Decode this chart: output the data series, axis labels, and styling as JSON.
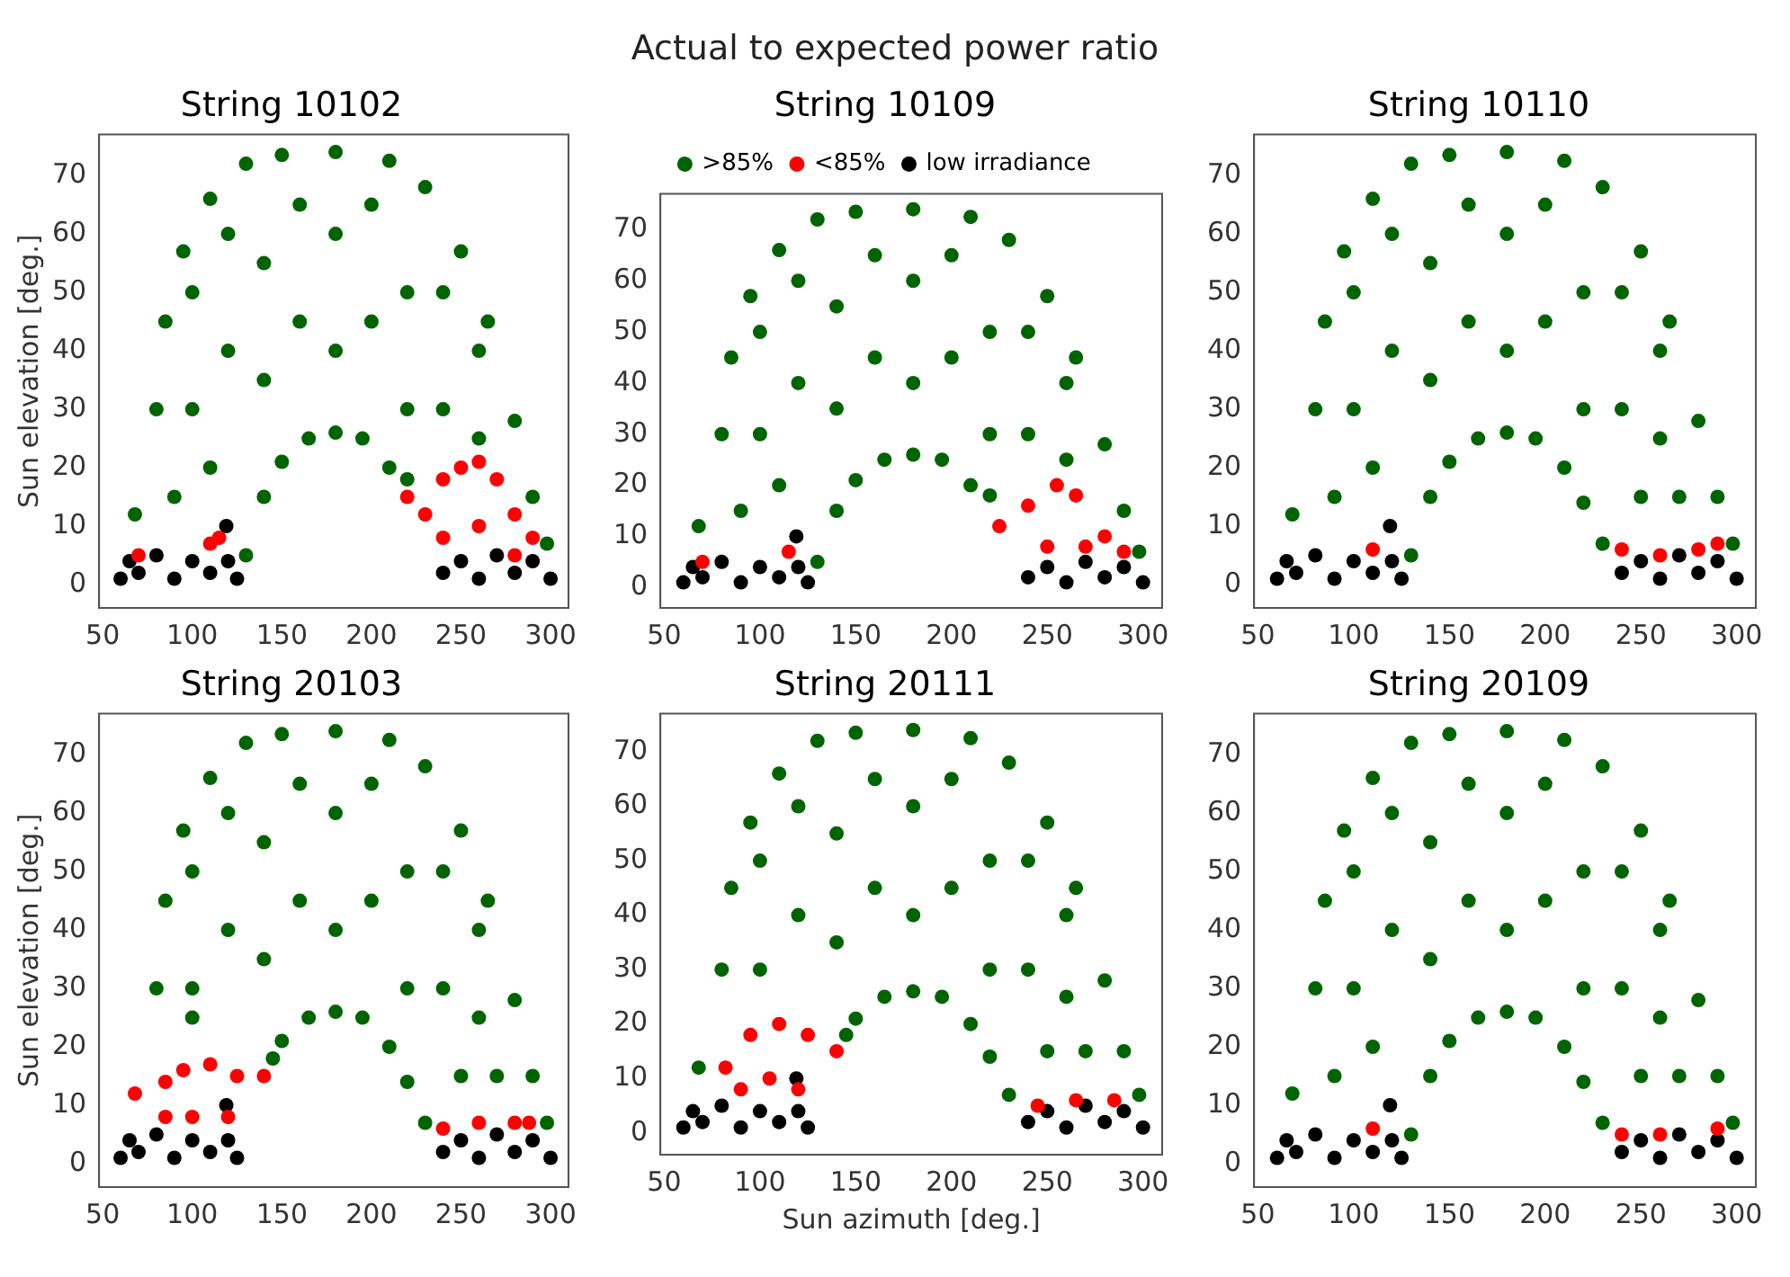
{
  "chart_data": [
    {
      "type": "scatter",
      "title": "String 10102",
      "ylabel": "Sun elevation [deg.]",
      "annotations": [
        "Actual to expected power ratio"
      ],
      "xlim": [
        48,
        310
      ],
      "ylim": [
        -4,
        77
      ],
      "xticks": [
        50,
        100,
        150,
        200,
        250,
        300
      ],
      "yticks": [
        0,
        10,
        20,
        30,
        40,
        50,
        60,
        70
      ],
      "grid": false,
      "legend": false,
      "marker": "circle",
      "series": [
        {
          "color": "#006400",
          "x": [
            80,
            85,
            95,
            110,
            130,
            150,
            180,
            210,
            230,
            250,
            265,
            280,
            290,
            298,
            130,
            140,
            150,
            165,
            180,
            195,
            210,
            220,
            68,
            90,
            110,
            100,
            100,
            120,
            120,
            140,
            140,
            160,
            160,
            180,
            180,
            200,
            200,
            220,
            220,
            240,
            240,
            260,
            260
          ],
          "values": [
            30,
            45,
            57,
            66,
            72,
            73.5,
            74,
            72.5,
            68,
            57,
            45,
            28,
            15,
            7,
            5,
            15,
            21,
            25,
            26,
            25,
            20,
            18,
            12,
            15,
            20,
            30,
            50,
            40,
            60,
            35,
            55,
            45,
            65,
            40,
            60,
            45,
            65,
            30,
            50,
            30,
            50,
            25,
            40
          ]
        },
        {
          "color": "#ff0000",
          "x": [
            220,
            230,
            240,
            250,
            260,
            270,
            280,
            290,
            240,
            260,
            280,
            70,
            110,
            115
          ],
          "values": [
            15,
            12,
            18,
            20,
            21,
            18,
            12,
            8,
            8,
            10,
            5,
            5,
            7,
            8
          ]
        },
        {
          "color": "#000000",
          "x": [
            60,
            65,
            70,
            80,
            90,
            100,
            110,
            120,
            125,
            119,
            240,
            250,
            260,
            270,
            280,
            290,
            300
          ],
          "values": [
            1,
            4,
            2,
            5,
            1,
            4,
            2,
            4,
            1,
            10,
            2,
            4,
            1,
            5,
            2,
            4,
            1
          ]
        }
      ]
    },
    {
      "type": "scatter",
      "title": "String 10109",
      "xlim": [
        48,
        310
      ],
      "ylim": [
        -4,
        77
      ],
      "xticks": [
        50,
        100,
        150,
        200,
        250,
        300
      ],
      "yticks": [
        0,
        10,
        20,
        30,
        40,
        50,
        60,
        70
      ],
      "grid": false,
      "legend": "top",
      "marker": "circle",
      "series": [
        {
          "name": ">85%",
          "color": "#006400",
          "x": [
            80,
            85,
            95,
            110,
            130,
            150,
            180,
            210,
            230,
            250,
            265,
            280,
            290,
            298,
            130,
            140,
            150,
            165,
            180,
            195,
            210,
            220,
            68,
            90,
            110,
            100,
            100,
            120,
            120,
            140,
            140,
            160,
            160,
            180,
            180,
            200,
            200,
            220,
            220,
            240,
            240,
            260,
            260
          ],
          "values": [
            30,
            45,
            57,
            66,
            72,
            73.5,
            74,
            72.5,
            68,
            57,
            45,
            28,
            15,
            7,
            5,
            15,
            21,
            25,
            26,
            25,
            20,
            18,
            12,
            15,
            20,
            30,
            50,
            40,
            60,
            35,
            55,
            45,
            65,
            40,
            60,
            45,
            65,
            30,
            50,
            30,
            50,
            25,
            40
          ]
        },
        {
          "name": "<85%",
          "color": "#ff0000",
          "x": [
            225,
            240,
            255,
            265,
            280,
            290,
            250,
            270,
            70,
            115
          ],
          "values": [
            12,
            16,
            20,
            18,
            10,
            7,
            8,
            8,
            5,
            7
          ]
        },
        {
          "name": "low irradiance",
          "color": "#000000",
          "x": [
            60,
            65,
            70,
            80,
            90,
            100,
            110,
            120,
            125,
            119,
            240,
            250,
            260,
            270,
            280,
            290,
            300
          ],
          "values": [
            1,
            4,
            2,
            5,
            1,
            4,
            2,
            4,
            1,
            10,
            2,
            4,
            1,
            5,
            2,
            4,
            1
          ]
        }
      ]
    },
    {
      "type": "scatter",
      "title": "String 10110",
      "xlim": [
        48,
        310
      ],
      "ylim": [
        -4,
        77
      ],
      "xticks": [
        50,
        100,
        150,
        200,
        250,
        300
      ],
      "yticks": [
        0,
        10,
        20,
        30,
        40,
        50,
        60,
        70
      ],
      "grid": false,
      "legend": false,
      "marker": "circle",
      "series": [
        {
          "color": "#006400",
          "x": [
            80,
            85,
            95,
            110,
            130,
            150,
            180,
            210,
            230,
            250,
            265,
            280,
            290,
            298,
            130,
            140,
            150,
            165,
            180,
            195,
            210,
            220,
            230,
            68,
            90,
            110,
            100,
            100,
            120,
            120,
            140,
            140,
            160,
            160,
            180,
            180,
            200,
            200,
            220,
            220,
            240,
            240,
            260,
            260,
            250,
            270
          ],
          "values": [
            30,
            45,
            57,
            66,
            72,
            73.5,
            74,
            72.5,
            68,
            57,
            45,
            28,
            15,
            7,
            5,
            15,
            21,
            25,
            26,
            25,
            20,
            14,
            7,
            12,
            15,
            20,
            30,
            50,
            40,
            60,
            35,
            55,
            45,
            65,
            40,
            60,
            45,
            65,
            30,
            50,
            30,
            50,
            25,
            40,
            15,
            15
          ]
        },
        {
          "color": "#ff0000",
          "x": [
            240,
            260,
            280,
            290,
            110
          ],
          "values": [
            6,
            5,
            6,
            7,
            6
          ]
        },
        {
          "color": "#000000",
          "x": [
            60,
            65,
            70,
            80,
            90,
            100,
            110,
            120,
            125,
            119,
            240,
            250,
            260,
            270,
            280,
            290,
            300
          ],
          "values": [
            1,
            4,
            2,
            5,
            1,
            4,
            2,
            4,
            1,
            10,
            2,
            4,
            1,
            5,
            2,
            4,
            1
          ]
        }
      ]
    },
    {
      "type": "scatter",
      "title": "String 20103",
      "ylabel": "Sun elevation [deg.]",
      "xlim": [
        48,
        310
      ],
      "ylim": [
        -4,
        77
      ],
      "xticks": [
        50,
        100,
        150,
        200,
        250,
        300
      ],
      "yticks": [
        0,
        10,
        20,
        30,
        40,
        50,
        60,
        70
      ],
      "grid": false,
      "legend": false,
      "marker": "circle",
      "series": [
        {
          "color": "#006400",
          "x": [
            80,
            85,
            95,
            110,
            130,
            150,
            180,
            210,
            230,
            250,
            265,
            280,
            290,
            298,
            145,
            150,
            165,
            180,
            195,
            210,
            220,
            230,
            100,
            100,
            100,
            120,
            120,
            140,
            140,
            160,
            160,
            180,
            180,
            200,
            200,
            220,
            220,
            240,
            240,
            260,
            260,
            250,
            270
          ],
          "values": [
            30,
            45,
            57,
            66,
            72,
            73.5,
            74,
            72.5,
            68,
            57,
            45,
            28,
            15,
            7,
            18,
            21,
            25,
            26,
            25,
            20,
            14,
            7,
            25,
            30,
            50,
            40,
            60,
            35,
            55,
            45,
            65,
            40,
            60,
            45,
            65,
            30,
            50,
            30,
            50,
            25,
            40,
            15,
            15
          ]
        },
        {
          "color": "#ff0000",
          "x": [
            68,
            85,
            95,
            110,
            125,
            140,
            85,
            100,
            120,
            240,
            260,
            280,
            288
          ],
          "values": [
            12,
            14,
            16,
            17,
            15,
            15,
            8,
            8,
            8,
            6,
            7,
            7,
            7
          ]
        },
        {
          "color": "#000000",
          "x": [
            60,
            65,
            70,
            80,
            90,
            100,
            110,
            120,
            125,
            119,
            240,
            250,
            260,
            270,
            280,
            290,
            300
          ],
          "values": [
            1,
            4,
            2,
            5,
            1,
            4,
            2,
            4,
            1,
            10,
            2,
            4,
            1,
            5,
            2,
            4,
            1
          ]
        }
      ]
    },
    {
      "type": "scatter",
      "title": "String 20111",
      "xlabel": "Sun azimuth [deg.]",
      "xlim": [
        48,
        310
      ],
      "ylim": [
        -4,
        77
      ],
      "xticks": [
        50,
        100,
        150,
        200,
        250,
        300
      ],
      "yticks": [
        0,
        10,
        20,
        30,
        40,
        50,
        60,
        70
      ],
      "grid": false,
      "legend": false,
      "marker": "circle",
      "series": [
        {
          "color": "#006400",
          "x": [
            80,
            85,
            95,
            110,
            130,
            150,
            180,
            210,
            230,
            250,
            265,
            280,
            290,
            298,
            145,
            150,
            165,
            180,
            195,
            210,
            220,
            230,
            68,
            100,
            100,
            120,
            120,
            140,
            140,
            160,
            160,
            180,
            180,
            200,
            200,
            220,
            220,
            240,
            240,
            260,
            260,
            250,
            270
          ],
          "values": [
            30,
            45,
            57,
            66,
            72,
            73.5,
            74,
            72.5,
            68,
            57,
            45,
            28,
            15,
            7,
            18,
            21,
            25,
            26,
            25,
            20,
            14,
            7,
            12,
            30,
            50,
            40,
            60,
            35,
            55,
            45,
            65,
            40,
            60,
            45,
            65,
            30,
            50,
            30,
            50,
            25,
            40,
            15,
            15
          ]
        },
        {
          "color": "#ff0000",
          "x": [
            82,
            95,
            110,
            125,
            140,
            90,
            105,
            120,
            245,
            265,
            285
          ],
          "values": [
            12,
            18,
            20,
            18,
            15,
            8,
            10,
            8,
            5,
            6,
            6
          ]
        },
        {
          "color": "#000000",
          "x": [
            60,
            65,
            70,
            80,
            90,
            100,
            110,
            120,
            125,
            119,
            240,
            250,
            260,
            270,
            280,
            290,
            300
          ],
          "values": [
            1,
            4,
            2,
            5,
            1,
            4,
            2,
            4,
            1,
            10,
            2,
            4,
            1,
            5,
            2,
            4,
            1
          ]
        }
      ]
    },
    {
      "type": "scatter",
      "title": "String 20109",
      "xlim": [
        48,
        310
      ],
      "ylim": [
        -4,
        77
      ],
      "xticks": [
        50,
        100,
        150,
        200,
        250,
        300
      ],
      "yticks": [
        0,
        10,
        20,
        30,
        40,
        50,
        60,
        70
      ],
      "grid": false,
      "legend": false,
      "marker": "circle",
      "series": [
        {
          "color": "#006400",
          "x": [
            80,
            85,
            95,
            110,
            130,
            150,
            180,
            210,
            230,
            250,
            265,
            280,
            290,
            298,
            130,
            140,
            150,
            165,
            180,
            195,
            210,
            220,
            230,
            68,
            90,
            110,
            100,
            100,
            120,
            120,
            140,
            140,
            160,
            160,
            180,
            180,
            200,
            200,
            220,
            220,
            240,
            240,
            260,
            260,
            250,
            270
          ],
          "values": [
            30,
            45,
            57,
            66,
            72,
            73.5,
            74,
            72.5,
            68,
            57,
            45,
            28,
            15,
            7,
            5,
            15,
            21,
            25,
            26,
            25,
            20,
            14,
            7,
            12,
            15,
            20,
            30,
            50,
            40,
            60,
            35,
            55,
            45,
            65,
            40,
            60,
            45,
            65,
            30,
            50,
            30,
            50,
            25,
            40,
            15,
            15
          ]
        },
        {
          "color": "#ff0000",
          "x": [
            240,
            260,
            110,
            290
          ],
          "values": [
            5,
            5,
            6,
            6
          ]
        },
        {
          "color": "#000000",
          "x": [
            60,
            65,
            70,
            80,
            90,
            100,
            110,
            120,
            125,
            119,
            240,
            250,
            260,
            270,
            280,
            290,
            300
          ],
          "values": [
            1,
            4,
            2,
            5,
            1,
            4,
            2,
            4,
            1,
            10,
            2,
            4,
            1,
            5,
            2,
            4,
            1
          ]
        }
      ]
    }
  ]
}
